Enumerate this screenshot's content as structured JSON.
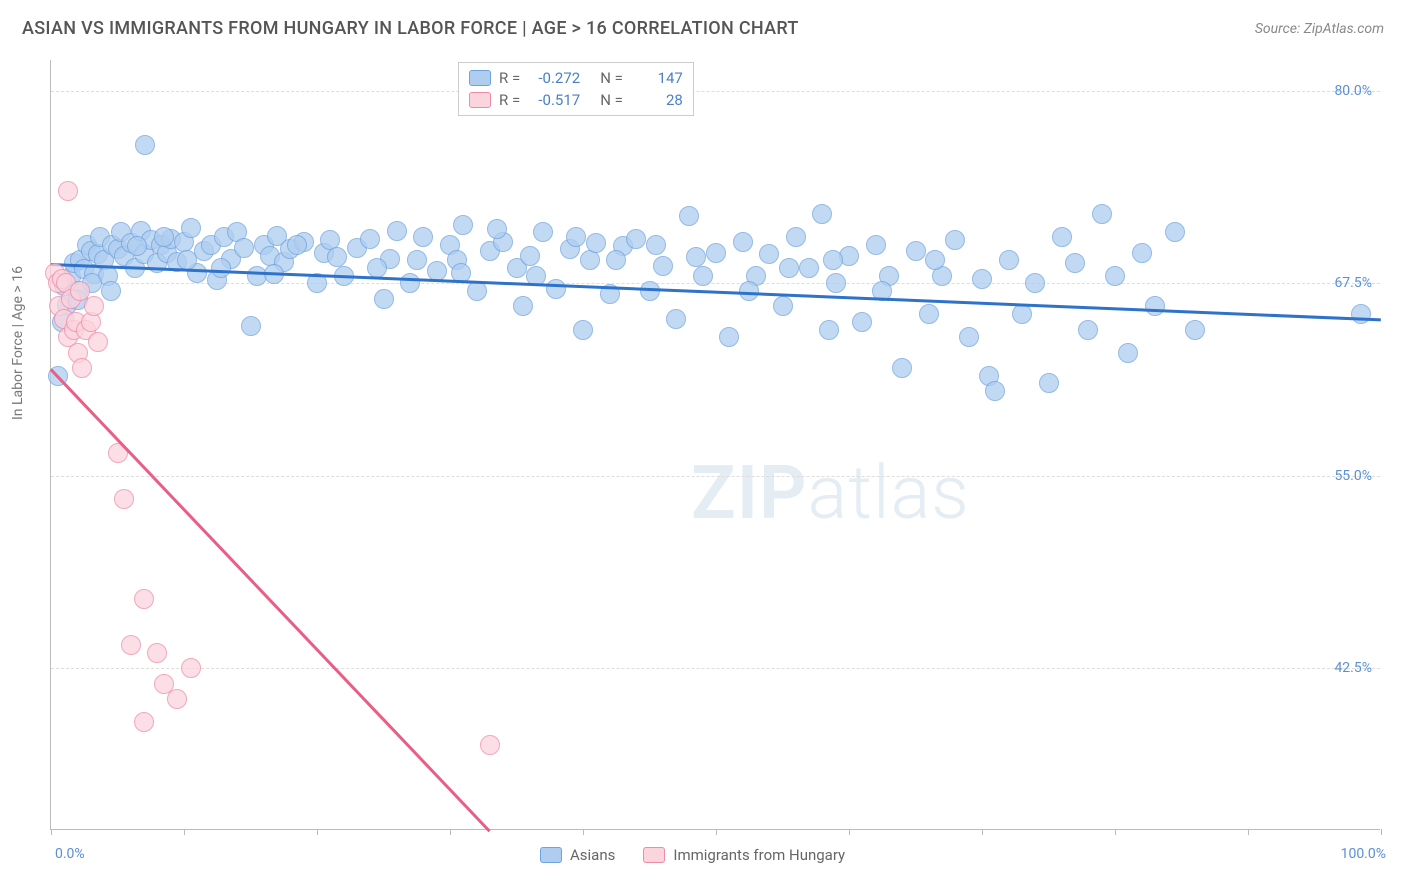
{
  "header": {
    "title": "ASIAN VS IMMIGRANTS FROM HUNGARY IN LABOR FORCE | AGE > 16 CORRELATION CHART",
    "source": "Source: ZipAtlas.com"
  },
  "chart": {
    "type": "scatter",
    "background_color": "#ffffff",
    "grid_color": "#dddddd",
    "axis_color": "#bbbbbb",
    "y_axis": {
      "label": "In Labor Force | Age > 16",
      "label_fontsize": 14,
      "label_color": "#777777",
      "ticks": [
        {
          "value": 80.0,
          "label": "80.0%"
        },
        {
          "value": 67.5,
          "label": "67.5%"
        },
        {
          "value": 55.0,
          "label": "55.0%"
        },
        {
          "value": 42.5,
          "label": "42.5%"
        }
      ],
      "ymin": 32.0,
      "ymax": 82.0,
      "tick_color": "#5a8fd6"
    },
    "x_axis": {
      "xmin": 0.0,
      "xmax": 100.0,
      "tick_positions": [
        0,
        10,
        20,
        30,
        40,
        50,
        60,
        70,
        80,
        90,
        100
      ],
      "label_left": "0.0%",
      "label_right": "100.0%",
      "tick_color": "#5a8fd6"
    },
    "series": [
      {
        "name": "Asians",
        "marker_color": "#aecdf0",
        "marker_border": "#6fa3dd",
        "marker_opacity": 0.75,
        "marker_radius": 10,
        "trend": {
          "x1": 0,
          "y1": 68.8,
          "x2": 100,
          "y2": 65.2,
          "color": "#2f72c9",
          "width": 2.5
        },
        "points": [
          [
            0.5,
            61.5
          ],
          [
            0.8,
            65.0
          ],
          [
            1.0,
            67.3
          ],
          [
            1.2,
            66.1
          ],
          [
            1.5,
            67.9
          ],
          [
            1.7,
            68.8
          ],
          [
            2.0,
            67.0
          ],
          [
            2.2,
            69.0
          ],
          [
            2.5,
            68.4
          ],
          [
            2.7,
            70.0
          ],
          [
            3.0,
            69.6
          ],
          [
            3.2,
            68.1
          ],
          [
            3.5,
            69.4
          ],
          [
            3.7,
            70.5
          ],
          [
            4.0,
            69.0
          ],
          [
            4.3,
            68.0
          ],
          [
            4.6,
            70.0
          ],
          [
            5.0,
            69.7
          ],
          [
            5.3,
            70.8
          ],
          [
            5.5,
            69.3
          ],
          [
            6.0,
            70.1
          ],
          [
            6.3,
            68.5
          ],
          [
            6.8,
            70.9
          ],
          [
            7.0,
            69.4
          ],
          [
            7.5,
            70.3
          ],
          [
            7.1,
            76.5
          ],
          [
            8.0,
            68.8
          ],
          [
            8.3,
            70.0
          ],
          [
            8.7,
            69.5
          ],
          [
            9.0,
            70.4
          ],
          [
            9.5,
            68.9
          ],
          [
            10.0,
            70.2
          ],
          [
            10.5,
            71.1
          ],
          [
            11.0,
            68.2
          ],
          [
            11.5,
            69.6
          ],
          [
            12.0,
            70.0
          ],
          [
            12.5,
            67.7
          ],
          [
            13.0,
            70.5
          ],
          [
            13.5,
            69.1
          ],
          [
            14.0,
            70.8
          ],
          [
            15.0,
            64.7
          ],
          [
            15.5,
            68.0
          ],
          [
            16.0,
            70.0
          ],
          [
            16.5,
            69.3
          ],
          [
            17.0,
            70.6
          ],
          [
            17.5,
            68.9
          ],
          [
            18.0,
            69.7
          ],
          [
            19.0,
            70.2
          ],
          [
            20.0,
            67.5
          ],
          [
            20.5,
            69.5
          ],
          [
            21.0,
            70.3
          ],
          [
            22.0,
            68.0
          ],
          [
            23.0,
            69.8
          ],
          [
            24.0,
            70.4
          ],
          [
            25.0,
            66.5
          ],
          [
            25.5,
            69.1
          ],
          [
            26.0,
            70.9
          ],
          [
            27.0,
            67.5
          ],
          [
            28.0,
            70.5
          ],
          [
            29.0,
            68.3
          ],
          [
            30.0,
            70.0
          ],
          [
            30.5,
            69.0
          ],
          [
            31.0,
            71.3
          ],
          [
            32.0,
            67.0
          ],
          [
            33.0,
            69.6
          ],
          [
            34.0,
            70.2
          ],
          [
            35.0,
            68.5
          ],
          [
            35.5,
            66.0
          ],
          [
            36.0,
            69.3
          ],
          [
            37.0,
            70.8
          ],
          [
            38.0,
            67.1
          ],
          [
            39.0,
            69.7
          ],
          [
            40.0,
            64.5
          ],
          [
            40.5,
            69.0
          ],
          [
            41.0,
            70.1
          ],
          [
            42.0,
            66.8
          ],
          [
            43.0,
            69.9
          ],
          [
            44.0,
            70.4
          ],
          [
            45.0,
            67.0
          ],
          [
            46.0,
            68.6
          ],
          [
            47.0,
            65.2
          ],
          [
            48.0,
            71.9
          ],
          [
            49.0,
            68.0
          ],
          [
            50.0,
            69.5
          ],
          [
            51.0,
            64.0
          ],
          [
            52.0,
            70.2
          ],
          [
            53.0,
            68.0
          ],
          [
            54.0,
            69.4
          ],
          [
            55.0,
            66.0
          ],
          [
            56.0,
            70.5
          ],
          [
            57.0,
            68.5
          ],
          [
            58.0,
            72.0
          ],
          [
            58.5,
            64.5
          ],
          [
            59.0,
            67.5
          ],
          [
            60.0,
            69.3
          ],
          [
            61.0,
            65.0
          ],
          [
            62.0,
            70.0
          ],
          [
            63.0,
            68.0
          ],
          [
            64.0,
            62.0
          ],
          [
            65.0,
            69.6
          ],
          [
            66.0,
            65.5
          ],
          [
            67.0,
            68.0
          ],
          [
            68.0,
            70.3
          ],
          [
            69.0,
            64.0
          ],
          [
            70.0,
            67.8
          ],
          [
            70.5,
            61.5
          ],
          [
            71.0,
            60.5
          ],
          [
            72.0,
            69.0
          ],
          [
            73.0,
            65.5
          ],
          [
            74.0,
            67.5
          ],
          [
            75.0,
            61.0
          ],
          [
            76.0,
            70.5
          ],
          [
            77.0,
            68.8
          ],
          [
            78.0,
            64.5
          ],
          [
            79.0,
            72.0
          ],
          [
            80.0,
            68.0
          ],
          [
            81.0,
            63.0
          ],
          [
            82.0,
            69.5
          ],
          [
            83.0,
            66.0
          ],
          [
            84.5,
            70.8
          ],
          [
            86.0,
            64.5
          ],
          [
            98.5,
            65.5
          ],
          [
            2.0,
            66.4
          ],
          [
            3.1,
            67.5
          ],
          [
            4.5,
            67.0
          ],
          [
            6.5,
            69.9
          ],
          [
            8.5,
            70.5
          ],
          [
            10.2,
            69.0
          ],
          [
            12.8,
            68.5
          ],
          [
            14.5,
            69.8
          ],
          [
            16.8,
            68.1
          ],
          [
            18.5,
            70.0
          ],
          [
            21.5,
            69.2
          ],
          [
            24.5,
            68.5
          ],
          [
            27.5,
            69.0
          ],
          [
            30.8,
            68.2
          ],
          [
            33.5,
            71.0
          ],
          [
            36.5,
            68.0
          ],
          [
            39.5,
            70.5
          ],
          [
            42.5,
            69.0
          ],
          [
            45.5,
            70.0
          ],
          [
            48.5,
            69.2
          ],
          [
            52.5,
            67.0
          ],
          [
            55.5,
            68.5
          ],
          [
            58.8,
            69.0
          ],
          [
            62.5,
            67.0
          ],
          [
            66.5,
            69.0
          ]
        ]
      },
      {
        "name": "Immigrants from Hungary",
        "marker_color": "#fbd4de",
        "marker_border": "#ee8ba5",
        "marker_opacity": 0.75,
        "marker_radius": 10,
        "trend": {
          "x1": 0,
          "y1": 62.0,
          "x2": 33.0,
          "y2": 32.0,
          "color": "#ea5d85",
          "width": 2.5
        },
        "points": [
          [
            0.3,
            68.2
          ],
          [
            0.5,
            67.5
          ],
          [
            0.6,
            66.0
          ],
          [
            0.8,
            67.8
          ],
          [
            1.0,
            65.2
          ],
          [
            1.1,
            67.5
          ],
          [
            1.3,
            64.0
          ],
          [
            1.5,
            66.5
          ],
          [
            1.7,
            64.5
          ],
          [
            1.9,
            65.0
          ],
          [
            2.0,
            63.0
          ],
          [
            2.2,
            67.0
          ],
          [
            2.3,
            62.0
          ],
          [
            2.6,
            64.5
          ],
          [
            3.0,
            65.0
          ],
          [
            3.2,
            66.0
          ],
          [
            3.5,
            63.7
          ],
          [
            1.3,
            73.5
          ],
          [
            5.0,
            56.5
          ],
          [
            5.5,
            53.5
          ],
          [
            6.0,
            44.0
          ],
          [
            7.0,
            47.0
          ],
          [
            8.0,
            43.5
          ],
          [
            8.5,
            41.5
          ],
          [
            9.5,
            40.5
          ],
          [
            10.5,
            42.5
          ],
          [
            7.0,
            39.0
          ],
          [
            33.0,
            37.5
          ]
        ]
      }
    ],
    "legend_top": {
      "rows": [
        {
          "swatch_fill": "#aecdf0",
          "swatch_border": "#6fa3dd",
          "r_label": "R =",
          "r_value": "-0.272",
          "n_label": "N =",
          "n_value": "147"
        },
        {
          "swatch_fill": "#fbd4de",
          "swatch_border": "#ee8ba5",
          "r_label": "R =",
          "r_value": "-0.517",
          "n_label": "N =",
          "n_value": "28"
        }
      ]
    },
    "legend_bottom": {
      "items": [
        {
          "swatch_fill": "#aecdf0",
          "swatch_border": "#6fa3dd",
          "label": "Asians"
        },
        {
          "swatch_fill": "#fbd4de",
          "swatch_border": "#ee8ba5",
          "label": "Immigrants from Hungary"
        }
      ]
    },
    "watermark": {
      "text_bold": "ZIP",
      "text_light": "atlas"
    }
  }
}
